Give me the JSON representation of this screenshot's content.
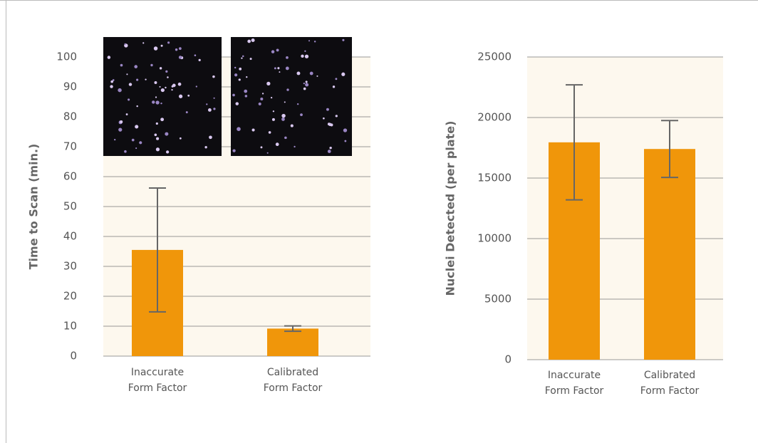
{
  "chart_data": [
    {
      "type": "bar",
      "y_label": "Time to Scan (min.)",
      "categories": [
        "Inaccurate Form Factor",
        "Calibrated Form Factor"
      ],
      "values": [
        35.5,
        9.2
      ],
      "errors": [
        20.7,
        0.9
      ],
      "color": "#f0960a",
      "ylim": [
        0,
        100
      ],
      "yticks": [
        0,
        10,
        20,
        30,
        40,
        50,
        60,
        70,
        80,
        90,
        100
      ],
      "grid": true
    },
    {
      "type": "bar",
      "y_label": "Nuclei Detected (per plate)",
      "categories": [
        "Inaccurate Form Factor",
        "Calibrated Form Factor"
      ],
      "values": [
        17950,
        17400
      ],
      "errors": [
        4750,
        2350
      ],
      "color": "#f0960a",
      "ylim": [
        0,
        25000
      ],
      "yticks": [
        0,
        5000,
        10000,
        15000,
        20000,
        25000
      ],
      "grid": true
    }
  ]
}
